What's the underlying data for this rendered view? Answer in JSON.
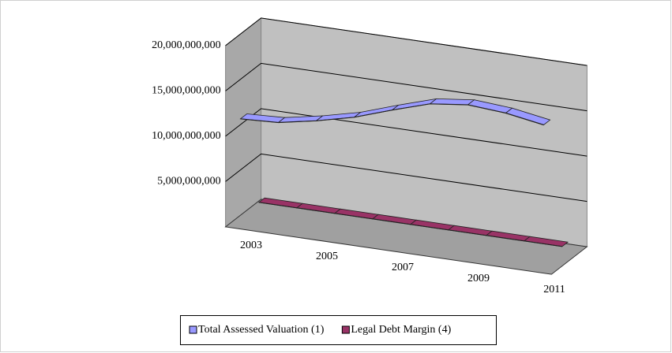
{
  "chart_data": {
    "type": "line3d",
    "categories": [
      "2003",
      null,
      "2005",
      null,
      "2007",
      null,
      "2009",
      null,
      "2011"
    ],
    "series": [
      {
        "name": "Total Assessed Valuation (1)",
        "color": "#9999ff",
        "values": [
          11800000000,
          12000000000,
          12800000000,
          13800000000,
          15200000000,
          16500000000,
          17000000000,
          16700000000,
          16000000000
        ]
      },
      {
        "name": "Legal Debt Margin (4)",
        "color": "#993366",
        "values": [
          1000000000,
          1000000000,
          1000000000,
          1000000000,
          1000000000,
          1000000000,
          1000000000,
          1000000000,
          1000000000
        ]
      }
    ],
    "ylim": [
      0,
      20000000000
    ],
    "yticks": [
      {
        "value": 5000000000,
        "label": "5,000,000,000"
      },
      {
        "value": 10000000000,
        "label": "10,000,000,000"
      },
      {
        "value": 15000000000,
        "label": "15,000,000,000"
      },
      {
        "value": 20000000000,
        "label": "20,000,000,000"
      }
    ],
    "grid": true,
    "legend": "bottom"
  }
}
